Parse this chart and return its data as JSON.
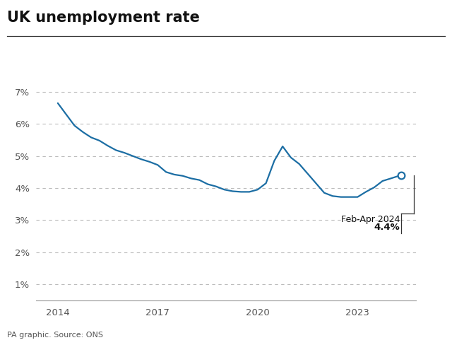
{
  "title": "UK unemployment rate",
  "source_text": "PA graphic. Source: ONS",
  "line_color": "#1c6ea4",
  "background_color": "#ffffff",
  "annotation_label": "Feb-Apr 2024",
  "annotation_value": "4.4%",
  "ylim": [
    0.5,
    7.5
  ],
  "yticks": [
    1,
    2,
    3,
    4,
    5,
    6,
    7
  ],
  "xlim_start": 2013.35,
  "xlim_end": 2024.75,
  "xticks": [
    2014,
    2017,
    2020,
    2023
  ],
  "data": [
    [
      2014.0,
      6.65
    ],
    [
      2014.25,
      6.3
    ],
    [
      2014.5,
      5.95
    ],
    [
      2014.75,
      5.75
    ],
    [
      2015.0,
      5.58
    ],
    [
      2015.25,
      5.48
    ],
    [
      2015.5,
      5.32
    ],
    [
      2015.75,
      5.18
    ],
    [
      2016.0,
      5.1
    ],
    [
      2016.25,
      5.0
    ],
    [
      2016.5,
      4.9
    ],
    [
      2016.75,
      4.82
    ],
    [
      2017.0,
      4.72
    ],
    [
      2017.25,
      4.5
    ],
    [
      2017.5,
      4.42
    ],
    [
      2017.75,
      4.38
    ],
    [
      2018.0,
      4.3
    ],
    [
      2018.25,
      4.25
    ],
    [
      2018.5,
      4.12
    ],
    [
      2018.75,
      4.05
    ],
    [
      2019.0,
      3.95
    ],
    [
      2019.25,
      3.9
    ],
    [
      2019.5,
      3.88
    ],
    [
      2019.75,
      3.88
    ],
    [
      2020.0,
      3.95
    ],
    [
      2020.25,
      4.15
    ],
    [
      2020.5,
      4.85
    ],
    [
      2020.75,
      5.3
    ],
    [
      2021.0,
      4.95
    ],
    [
      2021.25,
      4.75
    ],
    [
      2021.5,
      4.45
    ],
    [
      2021.75,
      4.15
    ],
    [
      2022.0,
      3.85
    ],
    [
      2022.25,
      3.75
    ],
    [
      2022.5,
      3.72
    ],
    [
      2022.75,
      3.72
    ],
    [
      2023.0,
      3.72
    ],
    [
      2023.25,
      3.88
    ],
    [
      2023.5,
      4.02
    ],
    [
      2023.75,
      4.22
    ],
    [
      2024.0,
      4.3
    ],
    [
      2024.15,
      4.35
    ],
    [
      2024.3,
      4.4
    ]
  ]
}
